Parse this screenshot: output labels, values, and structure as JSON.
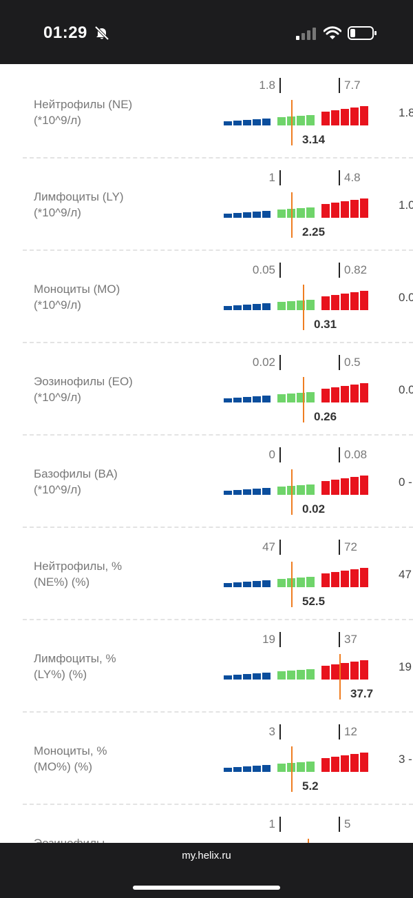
{
  "status_bar": {
    "time": "01:29"
  },
  "colors": {
    "low": "#0b4e9d",
    "normal": "#6fd46a",
    "high": "#e8131d",
    "marker": "#ef7d21"
  },
  "rows": [
    {
      "name": "Нейтрофилы (NE) (*10^9/л)",
      "low": "1.8",
      "high": "7.7",
      "value": "3.14",
      "marker": 0.23,
      "ref": "1.8"
    },
    {
      "name": "Лимфоциты (LY) (*10^9/л)",
      "low": "1",
      "high": "4.8",
      "value": "2.25",
      "marker": 0.23,
      "ref": "1.0"
    },
    {
      "name": "Моноциты (MO) (*10^9/л)",
      "low": "0.05",
      "high": "0.82",
      "value": "0.31",
      "marker": 0.42,
      "ref": "0.0"
    },
    {
      "name": "Эозинофилы (EO) (*10^9/л)",
      "low": "0.02",
      "high": "0.5",
      "value": "0.26",
      "marker": 0.42,
      "ref": "0.0"
    },
    {
      "name": "Базофилы (BA) (*10^9/л)",
      "low": "0",
      "high": "0.08",
      "value": "0.02",
      "marker": 0.23,
      "ref": "0 -"
    },
    {
      "name": "Нейтрофилы, % (NE%) (%)",
      "low": "47",
      "high": "72",
      "value": "52.5",
      "marker": 0.23,
      "ref": "47"
    },
    {
      "name": "Лимфоциты, % (LY%) (%)",
      "low": "19",
      "high": "37",
      "value": "37.7",
      "marker": 1.02,
      "ref": "19"
    },
    {
      "name": "Моноциты, % (MO%) (%)",
      "low": "3",
      "high": "12",
      "value": "5.2",
      "marker": 0.23,
      "ref": "3 -"
    },
    {
      "name": "Эозинофилы",
      "low": "1",
      "high": "5",
      "value": "",
      "marker": 0.5,
      "ref": ""
    }
  ],
  "browser": {
    "url": "my.helix.ru"
  }
}
